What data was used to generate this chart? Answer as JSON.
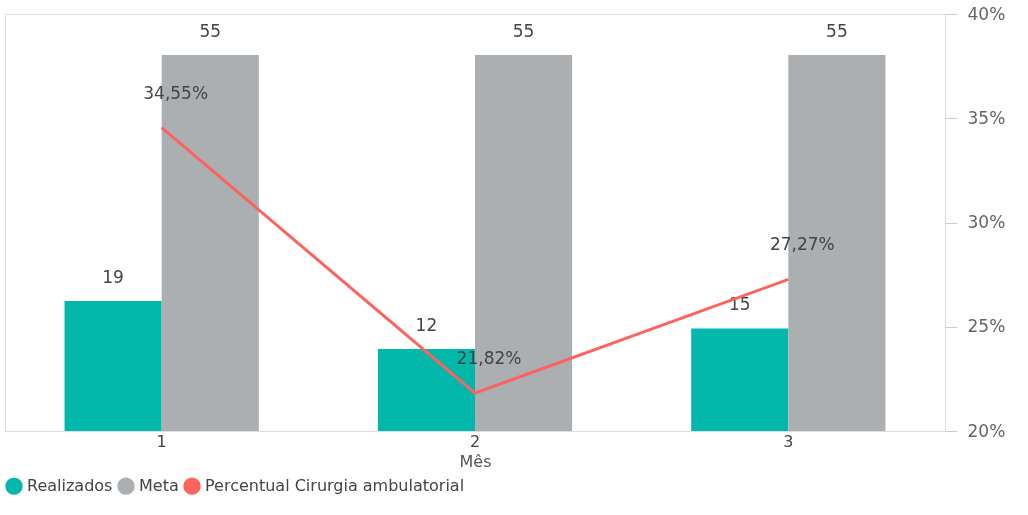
{
  "chart_data": {
    "type": "bar",
    "categories": [
      "1",
      "2",
      "3"
    ],
    "xlabel": "Mês",
    "series": [
      {
        "name": "Realizados",
        "color": "#01b8aa",
        "values": [
          19,
          12,
          15
        ],
        "value_labels": [
          "19",
          "12",
          "15"
        ]
      },
      {
        "name": "Meta",
        "color": "#abafb1",
        "values": [
          55,
          55,
          55
        ],
        "value_labels": [
          "55",
          "55",
          "55"
        ]
      },
      {
        "name": "Percentual  Cirurgia ambulatorial",
        "type": "line",
        "axis": "y2",
        "color": "#fd625e",
        "values": [
          34.55,
          21.82,
          27.27
        ],
        "value_labels": [
          "34,55%",
          "21,82%",
          "27,27%"
        ]
      }
    ],
    "ylim": [
      0,
      61
    ],
    "y2lim": [
      20,
      40
    ],
    "y2ticks": [
      {
        "value": 20,
        "label": "20%"
      },
      {
        "value": 25,
        "label": "25%"
      },
      {
        "value": 30,
        "label": "30%"
      },
      {
        "value": 35,
        "label": "35%"
      },
      {
        "value": 40,
        "label": "40%"
      }
    ],
    "tick_labels": "x",
    "legend": "bottom left",
    "grid": false,
    "marker": "none",
    "line_style": "solid"
  }
}
